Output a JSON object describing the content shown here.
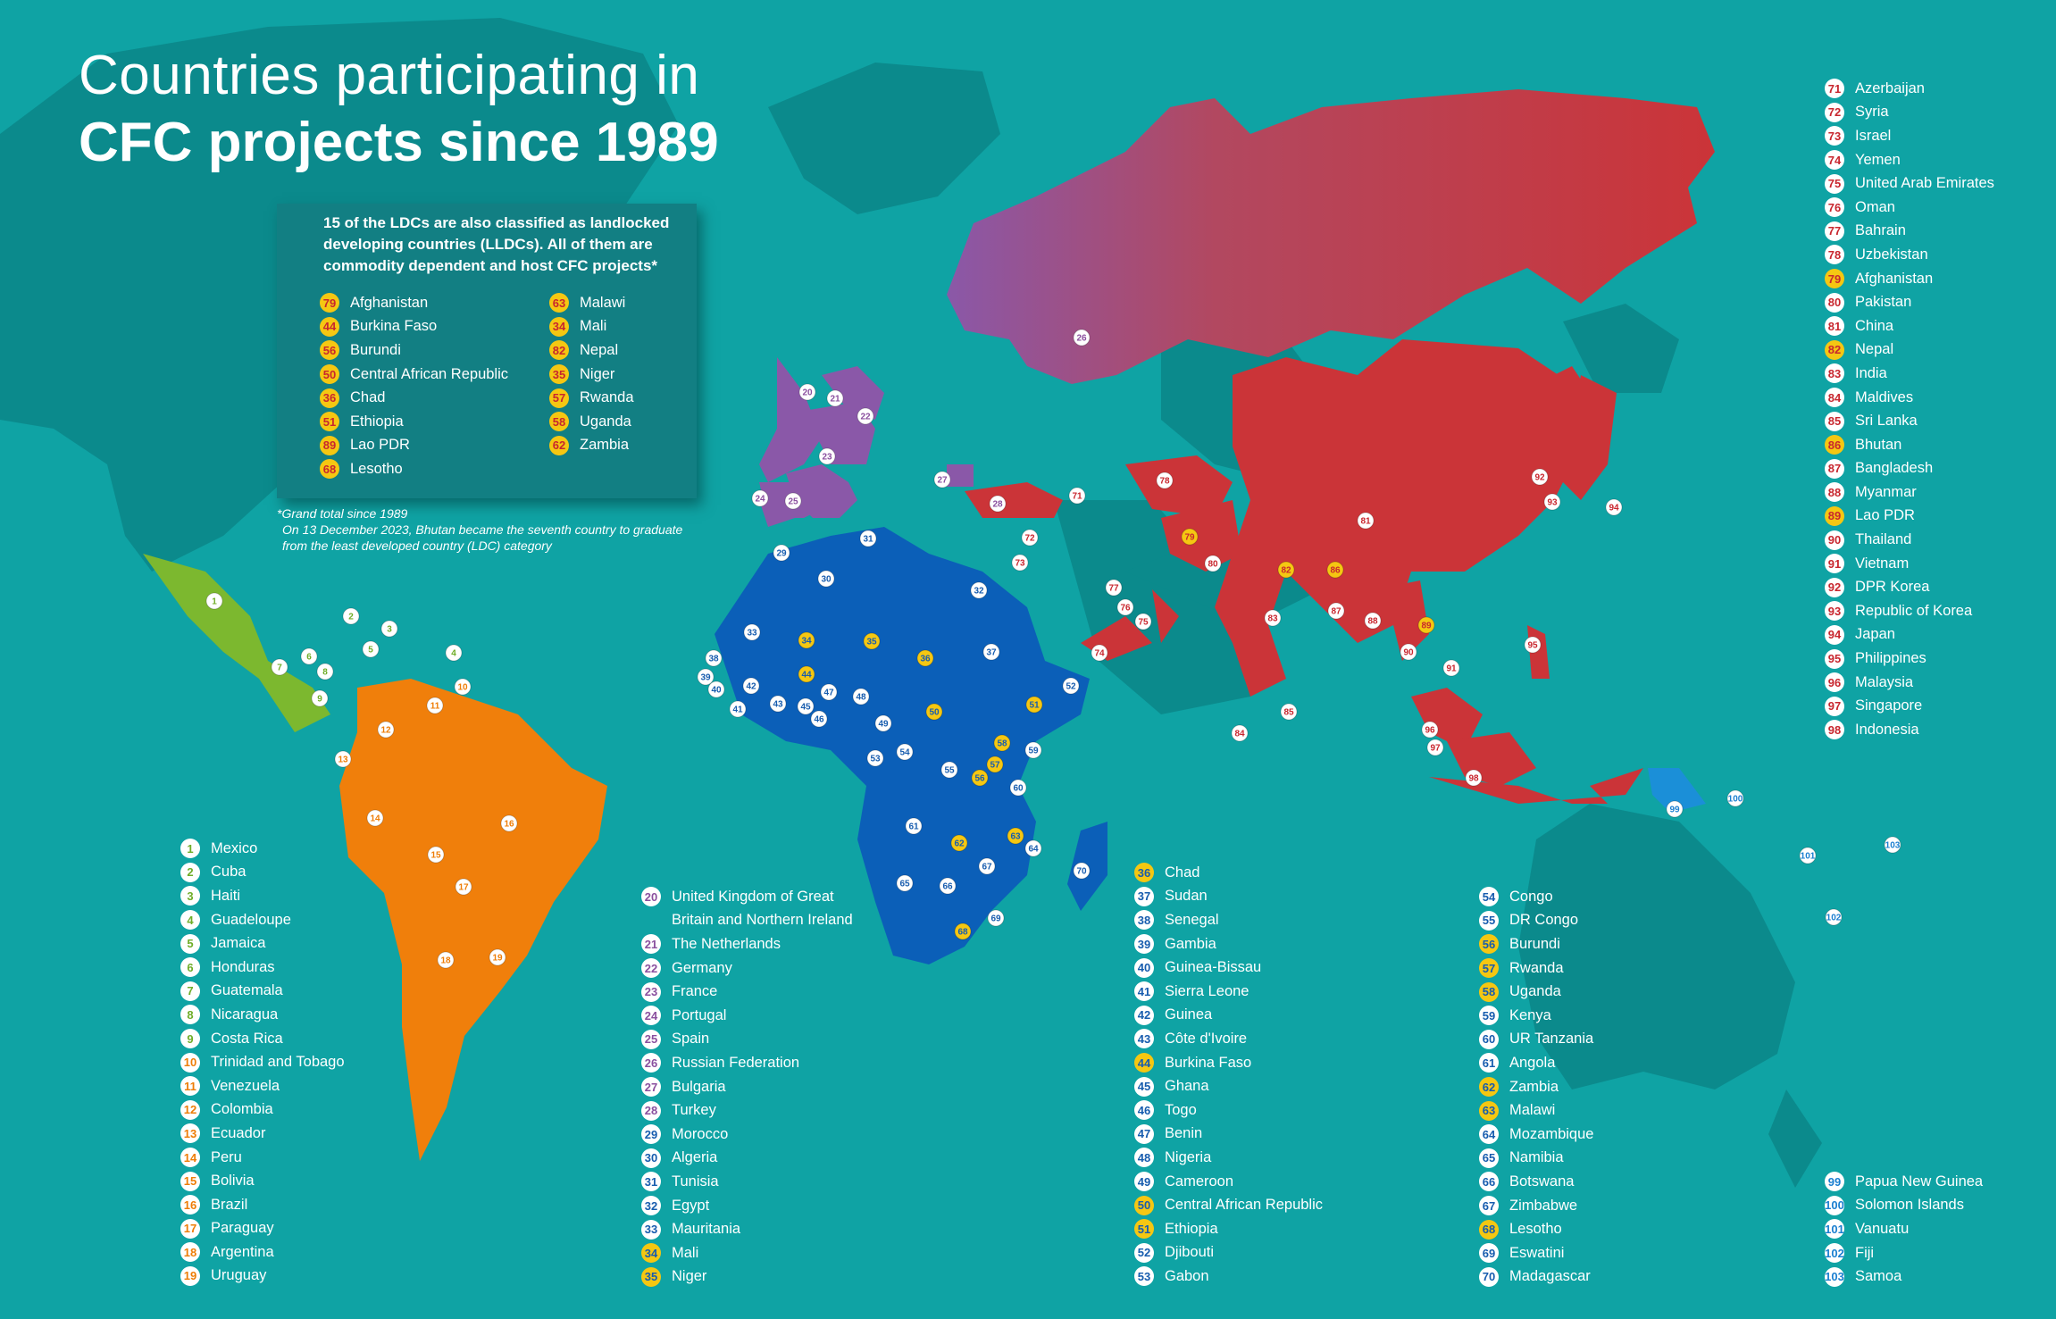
{
  "title": {
    "line1": "Countries participating in",
    "line2": "CFC projects since 1989"
  },
  "lldc_box": {
    "intro": "15 of the LDCs are also classified as landlocked developing countries (LLDCs). All of them are commodity dependent and host CFC projects*",
    "col1": [
      {
        "num": "79",
        "name": "Afghanistan"
      },
      {
        "num": "44",
        "name": "Burkina Faso"
      },
      {
        "num": "56",
        "name": "Burundi"
      },
      {
        "num": "50",
        "name": "Central African Republic"
      },
      {
        "num": "36",
        "name": "Chad"
      },
      {
        "num": "51",
        "name": "Ethiopia"
      },
      {
        "num": "89",
        "name": "Lao PDR"
      },
      {
        "num": "68",
        "name": "Lesotho"
      }
    ],
    "col2": [
      {
        "num": "63",
        "name": "Malawi"
      },
      {
        "num": "34",
        "name": "Mali"
      },
      {
        "num": "82",
        "name": "Nepal"
      },
      {
        "num": "35",
        "name": "Niger"
      },
      {
        "num": "57",
        "name": "Rwanda"
      },
      {
        "num": "58",
        "name": "Uganda"
      },
      {
        "num": "62",
        "name": "Zambia"
      }
    ]
  },
  "footnote": {
    "line1": "*Grand total since 1989",
    "line2": "On 13 December 2023, Bhutan became the seventh country to graduate from the least developed country (LDC) category"
  },
  "colors": {
    "ocean": "#0fa3a4",
    "land_other": "#0b8a8c",
    "americas": "#f07f0b",
    "americas_text": "#ee7d07",
    "central_america": "#7cb82f",
    "central_america_text": "#6fad28",
    "europe": "#8a58a8",
    "europe_text": "#8a4f9e",
    "africa": "#0b5fb8",
    "africa_text": "#175cae",
    "asia": "#cb3438",
    "asia_text": "#c8262e",
    "pacific": "#1b8fd8",
    "pacific_text": "#1b7fd0",
    "lldc_badge": "#f5c712"
  },
  "legend_groups": [
    {
      "id": "americas",
      "items": [
        {
          "num": "1",
          "name": "Mexico",
          "c": "#6fad28"
        },
        {
          "num": "2",
          "name": "Cuba",
          "c": "#6fad28"
        },
        {
          "num": "3",
          "name": "Haiti",
          "c": "#6fad28"
        },
        {
          "num": "4",
          "name": "Guadeloupe",
          "c": "#6fad28"
        },
        {
          "num": "5",
          "name": "Jamaica",
          "c": "#6fad28"
        },
        {
          "num": "6",
          "name": "Honduras",
          "c": "#6fad28"
        },
        {
          "num": "7",
          "name": "Guatemala",
          "c": "#6fad28"
        },
        {
          "num": "8",
          "name": "Nicaragua",
          "c": "#6fad28"
        },
        {
          "num": "9",
          "name": "Costa Rica",
          "c": "#6fad28"
        },
        {
          "num": "10",
          "name": "Trinidad and Tobago",
          "c": "#ee7d07"
        },
        {
          "num": "11",
          "name": "Venezuela",
          "c": "#ee7d07"
        },
        {
          "num": "12",
          "name": "Colombia",
          "c": "#ee7d07"
        },
        {
          "num": "13",
          "name": "Ecuador",
          "c": "#ee7d07"
        },
        {
          "num": "14",
          "name": "Peru",
          "c": "#ee7d07"
        },
        {
          "num": "15",
          "name": "Bolivia",
          "c": "#ee7d07"
        },
        {
          "num": "16",
          "name": "Brazil",
          "c": "#ee7d07"
        },
        {
          "num": "17",
          "name": "Paraguay",
          "c": "#ee7d07"
        },
        {
          "num": "18",
          "name": "Argentina",
          "c": "#ee7d07"
        },
        {
          "num": "19",
          "name": "Uruguay",
          "c": "#ee7d07"
        }
      ]
    },
    {
      "id": "europe",
      "items": [
        {
          "num": "20",
          "name": "United Kingdom of Great",
          "name2": "Britain and Northern Ireland",
          "c": "#8a4f9e"
        },
        {
          "num": "21",
          "name": "The Netherlands",
          "c": "#8a4f9e"
        },
        {
          "num": "22",
          "name": "Germany",
          "c": "#8a4f9e"
        },
        {
          "num": "23",
          "name": "France",
          "c": "#8a4f9e"
        },
        {
          "num": "24",
          "name": "Portugal",
          "c": "#8a4f9e"
        },
        {
          "num": "25",
          "name": "Spain",
          "c": "#8a4f9e"
        },
        {
          "num": "26",
          "name": "Russian Federation",
          "c": "#8a4f9e"
        },
        {
          "num": "27",
          "name": "Bulgaria",
          "c": "#8a4f9e"
        },
        {
          "num": "28",
          "name": "Turkey",
          "c": "#8a4f9e"
        },
        {
          "num": "29",
          "name": "Morocco",
          "c": "#175cae"
        },
        {
          "num": "30",
          "name": "Algeria",
          "c": "#175cae"
        },
        {
          "num": "31",
          "name": "Tunisia",
          "c": "#175cae"
        },
        {
          "num": "32",
          "name": "Egypt",
          "c": "#175cae"
        },
        {
          "num": "33",
          "name": "Mauritania",
          "c": "#175cae"
        },
        {
          "num": "34",
          "name": "Mali",
          "c": "#175cae",
          "ll": true
        },
        {
          "num": "35",
          "name": "Niger",
          "c": "#175cae",
          "ll": true
        }
      ]
    },
    {
      "id": "africa-1",
      "items": [
        {
          "num": "36",
          "name": "Chad",
          "c": "#175cae",
          "ll": true
        },
        {
          "num": "37",
          "name": "Sudan",
          "c": "#175cae"
        },
        {
          "num": "38",
          "name": "Senegal",
          "c": "#175cae"
        },
        {
          "num": "39",
          "name": "Gambia",
          "c": "#175cae"
        },
        {
          "num": "40",
          "name": "Guinea-Bissau",
          "c": "#175cae"
        },
        {
          "num": "41",
          "name": "Sierra Leone",
          "c": "#175cae"
        },
        {
          "num": "42",
          "name": "Guinea",
          "c": "#175cae"
        },
        {
          "num": "43",
          "name": "Côte d'Ivoire",
          "c": "#175cae"
        },
        {
          "num": "44",
          "name": "Burkina Faso",
          "c": "#175cae",
          "ll": true
        },
        {
          "num": "45",
          "name": "Ghana",
          "c": "#175cae"
        },
        {
          "num": "46",
          "name": "Togo",
          "c": "#175cae"
        },
        {
          "num": "47",
          "name": "Benin",
          "c": "#175cae"
        },
        {
          "num": "48",
          "name": "Nigeria",
          "c": "#175cae"
        },
        {
          "num": "49",
          "name": "Cameroon",
          "c": "#175cae"
        },
        {
          "num": "50",
          "name": "Central African Republic",
          "c": "#175cae",
          "ll": true
        },
        {
          "num": "51",
          "name": "Ethiopia",
          "c": "#175cae",
          "ll": true
        },
        {
          "num": "52",
          "name": "Djibouti",
          "c": "#175cae"
        },
        {
          "num": "53",
          "name": "Gabon",
          "c": "#175cae"
        }
      ]
    },
    {
      "id": "africa-2",
      "items": [
        {
          "num": "54",
          "name": "Congo",
          "c": "#175cae"
        },
        {
          "num": "55",
          "name": "DR Congo",
          "c": "#175cae"
        },
        {
          "num": "56",
          "name": "Burundi",
          "c": "#175cae",
          "ll": true
        },
        {
          "num": "57",
          "name": "Rwanda",
          "c": "#175cae",
          "ll": true
        },
        {
          "num": "58",
          "name": "Uganda",
          "c": "#175cae",
          "ll": true
        },
        {
          "num": "59",
          "name": "Kenya",
          "c": "#175cae"
        },
        {
          "num": "60",
          "name": "UR Tanzania",
          "c": "#175cae"
        },
        {
          "num": "61",
          "name": "Angola",
          "c": "#175cae"
        },
        {
          "num": "62",
          "name": "Zambia",
          "c": "#175cae",
          "ll": true
        },
        {
          "num": "63",
          "name": "Malawi",
          "c": "#175cae",
          "ll": true
        },
        {
          "num": "64",
          "name": "Mozambique",
          "c": "#175cae"
        },
        {
          "num": "65",
          "name": "Namibia",
          "c": "#175cae"
        },
        {
          "num": "66",
          "name": "Botswana",
          "c": "#175cae"
        },
        {
          "num": "67",
          "name": "Zimbabwe",
          "c": "#175cae"
        },
        {
          "num": "68",
          "name": "Lesotho",
          "c": "#175cae",
          "ll": true
        },
        {
          "num": "69",
          "name": "Eswatini",
          "c": "#175cae"
        },
        {
          "num": "70",
          "name": "Madagascar",
          "c": "#175cae"
        }
      ]
    },
    {
      "id": "asia",
      "items": [
        {
          "num": "71",
          "name": "Azerbaijan",
          "c": "#c8262e"
        },
        {
          "num": "72",
          "name": "Syria",
          "c": "#c8262e"
        },
        {
          "num": "73",
          "name": "Israel",
          "c": "#c8262e"
        },
        {
          "num": "74",
          "name": "Yemen",
          "c": "#c8262e"
        },
        {
          "num": "75",
          "name": "United Arab Emirates",
          "c": "#c8262e"
        },
        {
          "num": "76",
          "name": "Oman",
          "c": "#c8262e"
        },
        {
          "num": "77",
          "name": "Bahrain",
          "c": "#c8262e"
        },
        {
          "num": "78",
          "name": "Uzbekistan",
          "c": "#c8262e"
        },
        {
          "num": "79",
          "name": "Afghanistan",
          "c": "#c8262e",
          "ll": true
        },
        {
          "num": "80",
          "name": "Pakistan",
          "c": "#c8262e"
        },
        {
          "num": "81",
          "name": "China",
          "c": "#c8262e"
        },
        {
          "num": "82",
          "name": "Nepal",
          "c": "#c8262e",
          "ll": true
        },
        {
          "num": "83",
          "name": "India",
          "c": "#c8262e"
        },
        {
          "num": "84",
          "name": "Maldives",
          "c": "#c8262e"
        },
        {
          "num": "85",
          "name": "Sri Lanka",
          "c": "#c8262e"
        },
        {
          "num": "86",
          "name": "Bhutan",
          "c": "#c8262e",
          "ll": true
        },
        {
          "num": "87",
          "name": "Bangladesh",
          "c": "#c8262e"
        },
        {
          "num": "88",
          "name": "Myanmar",
          "c": "#c8262e"
        },
        {
          "num": "89",
          "name": "Lao PDR",
          "c": "#c8262e",
          "ll": true
        },
        {
          "num": "90",
          "name": "Thailand",
          "c": "#c8262e"
        },
        {
          "num": "91",
          "name": "Vietnam",
          "c": "#c8262e"
        },
        {
          "num": "92",
          "name": "DPR Korea",
          "c": "#c8262e"
        },
        {
          "num": "93",
          "name": "Republic of Korea",
          "c": "#c8262e"
        },
        {
          "num": "94",
          "name": "Japan",
          "c": "#c8262e"
        },
        {
          "num": "95",
          "name": "Philippines",
          "c": "#c8262e"
        },
        {
          "num": "96",
          "name": "Malaysia",
          "c": "#c8262e"
        },
        {
          "num": "97",
          "name": "Singapore",
          "c": "#c8262e"
        },
        {
          "num": "98",
          "name": "Indonesia",
          "c": "#c8262e"
        }
      ]
    },
    {
      "id": "pacific",
      "items": [
        {
          "num": "99",
          "name": "Papua New Guinea",
          "c": "#1b7fd0"
        },
        {
          "num": "100",
          "name": "Solomon Islands",
          "c": "#1b7fd0"
        },
        {
          "num": "101",
          "name": "Vanuatu",
          "c": "#1b7fd0"
        },
        {
          "num": "102",
          "name": "Fiji",
          "c": "#1b7fd0"
        },
        {
          "num": "103",
          "name": "Samoa",
          "c": "#1b7fd0"
        }
      ]
    }
  ]
}
